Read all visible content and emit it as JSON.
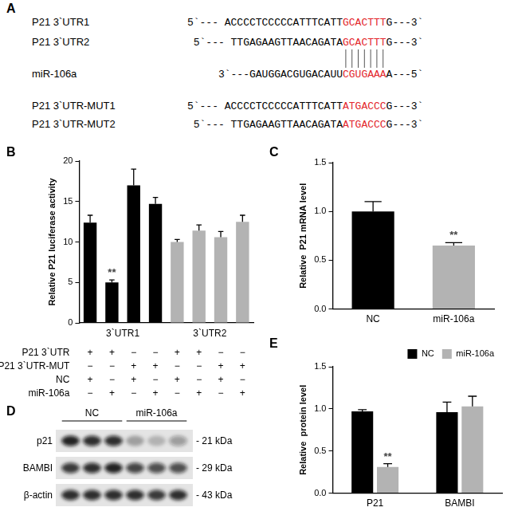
{
  "panel_a": {
    "title": "A",
    "rows": [
      {
        "name": "P21 3`UTR1",
        "left": "5`--- ACCCCTCCCCCATTTCATT",
        "highlight": "GCACTTT",
        "right": "G---3`"
      },
      {
        "name": "P21 3`UTR2",
        "left": "5`--- TTGAGAAGTTAACAGATA",
        "highlight": "GCACTTT",
        "right": "G---3`"
      },
      {
        "name": "miR-106a",
        "left": "3`---GAUGGACGUGACAUU",
        "highlight": "CGUGAAA",
        "right": "A---5`"
      },
      {
        "name": "P21 3`UTR-MUT1",
        "left": "5`--- ACCCCTCCCCCATTTCATT",
        "highlight": "ATGACCC",
        "right": "G---3`"
      },
      {
        "name": "P21 3`UTR-MUT2",
        "left": "5`--- TTGAGAAGTTAACAGATA",
        "highlight": "ATGACCC",
        "right": "G---3`"
      }
    ]
  },
  "chart_data": [
    {
      "type": "bar",
      "title": "B",
      "categories": [
        null,
        null,
        null,
        null,
        null,
        null,
        null,
        null
      ],
      "values": [
        12.4,
        5.0,
        17.0,
        14.7,
        10.0,
        11.4,
        10.6,
        12.5
      ],
      "errors": [
        0.9,
        0.3,
        2.0,
        0.8,
        0.3,
        0.7,
        0.7,
        0.8
      ],
      "colors": [
        "#000000",
        "#000000",
        "#000000",
        "#000000",
        "#b3b3b3",
        "#b3b3b3",
        "#b3b3b3",
        "#b3b3b3"
      ],
      "group_labels": [
        "3`UTR1",
        "3`UTR2"
      ],
      "y_label": "Relative P21 luciferase activity",
      "ylim": [
        0,
        20
      ],
      "yticks": [
        0,
        5,
        10,
        15,
        20
      ],
      "grid": false,
      "annotations": [
        {
          "index": 1,
          "text": "**"
        }
      ],
      "condition_table": [
        {
          "label": "P21 3`UTR",
          "signs": [
            "+",
            "+",
            "−",
            "−",
            "+",
            "+",
            "−",
            "−"
          ]
        },
        {
          "label": "P21 3`UTR-MUT",
          "signs": [
            "−",
            "−",
            "+",
            "+",
            "−",
            "−",
            "+",
            "+"
          ]
        },
        {
          "label": "NC",
          "signs": [
            "+",
            "−",
            "+",
            "−",
            "+",
            "−",
            "+",
            "−"
          ]
        },
        {
          "label": "miR-106a",
          "signs": [
            "−",
            "+",
            "−",
            "+",
            "−",
            "+",
            "−",
            "+"
          ]
        }
      ]
    },
    {
      "type": "bar",
      "title": "C",
      "categories": [
        "NC",
        "miR-106a"
      ],
      "values": [
        1.0,
        0.65
      ],
      "errors": [
        0.1,
        0.03
      ],
      "colors": [
        "#000000",
        "#b3b3b3"
      ],
      "y_label": "Relative  P21 mRNA level",
      "ylim": [
        0,
        1.5
      ],
      "yticks": [
        {
          "value": 0,
          "label": "0.0"
        },
        {
          "value": 0.5,
          "label": "0.5"
        },
        {
          "value": 1,
          "label": "1.0"
        },
        {
          "value": 1.5,
          "label": "1.5"
        }
      ],
      "grid": false,
      "annotations": [
        {
          "index": 1,
          "text": "**"
        }
      ]
    },
    {
      "type": "bar",
      "title": "E",
      "categories": [
        "P21",
        "BAMBI"
      ],
      "series": [
        {
          "name": "NC",
          "color": "#000000",
          "values": [
            0.97,
            0.96
          ],
          "errors": [
            0.02,
            0.12
          ]
        },
        {
          "name": "miR-106a",
          "color": "#b3b3b3",
          "values": [
            0.31,
            1.03
          ],
          "errors": [
            0.04,
            0.12
          ],
          "annotations": [
            {
              "index": 0,
              "text": "**"
            }
          ]
        }
      ],
      "y_label": "Relative  protein level",
      "ylim": [
        0,
        1.5
      ],
      "yticks": [
        {
          "value": 0,
          "label": "0.0"
        },
        {
          "value": 0.5,
          "label": "0.5"
        },
        {
          "value": 1,
          "label": "1.0"
        },
        {
          "value": 1.5,
          "label": "1.5"
        }
      ],
      "grid": false,
      "legend": "top-right"
    }
  ],
  "panel_d": {
    "title": "D",
    "groups": [
      {
        "label": "NC",
        "lanes": 3
      },
      {
        "label": "miR-106a",
        "lanes": 3
      }
    ],
    "rows": [
      {
        "name": "p21",
        "size": "- 21 kDa",
        "intensity": [
          0.9,
          0.85,
          0.85,
          0.3,
          0.22,
          0.35
        ]
      },
      {
        "name": "BAMBI",
        "size": "- 29 kDa",
        "intensity": [
          0.8,
          0.85,
          0.9,
          0.75,
          0.7,
          0.7
        ]
      },
      {
        "name": "β-actin",
        "size": "- 43 kDa",
        "intensity": [
          0.85,
          0.85,
          0.85,
          0.85,
          0.8,
          0.85
        ]
      }
    ]
  }
}
